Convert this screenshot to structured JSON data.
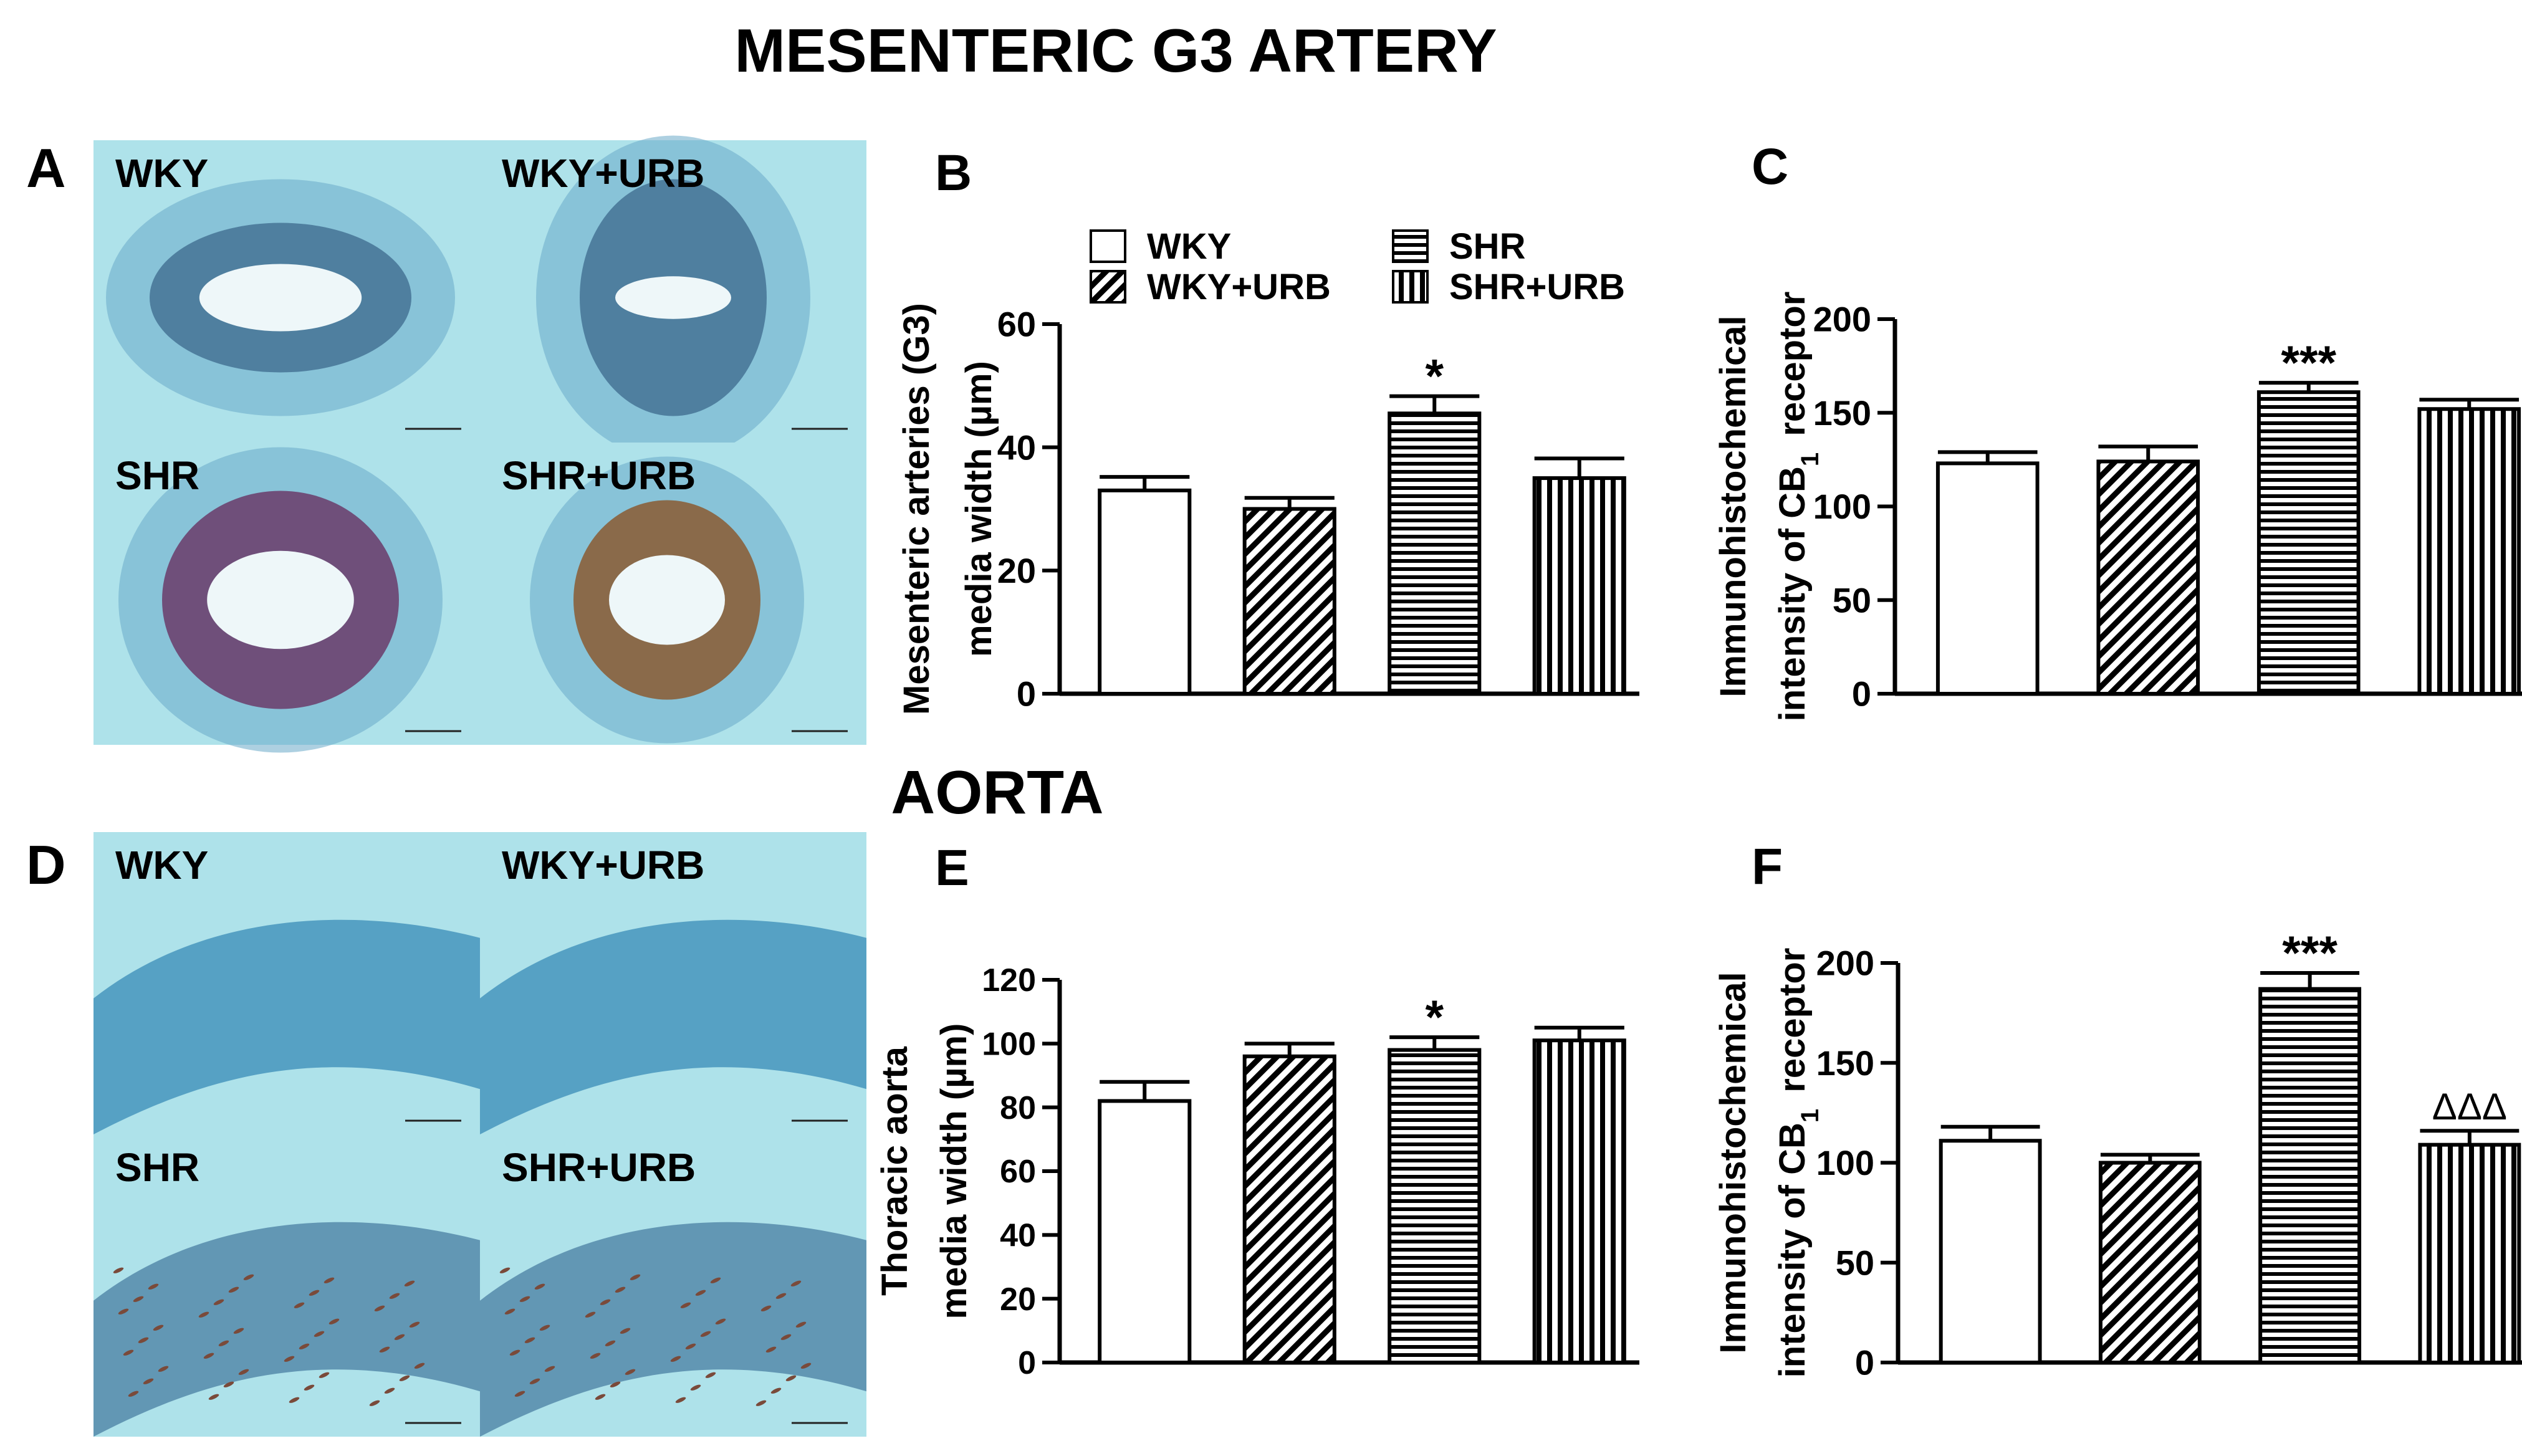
{
  "figure": {
    "section_top": "MESENTERIC  G3 ARTERY",
    "section_bottom": "AORTA"
  },
  "colors": {
    "ink": "#000000",
    "micrograph_bg": "#aee2ea",
    "tissue_blue": "#3c86b8",
    "tissue_brown": "#7a4a3a"
  },
  "micrographs": [
    {
      "panel": "A",
      "labels": [
        "WKY",
        "WKY+URB",
        "SHR",
        "SHR+URB"
      ]
    },
    {
      "panel": "D",
      "labels": [
        "WKY",
        "WKY+URB",
        "SHR",
        "SHR+URB"
      ]
    }
  ],
  "legend": {
    "items": [
      {
        "label": "WKY",
        "pattern": "open"
      },
      {
        "label": "SHR",
        "pattern": "horizontal"
      },
      {
        "label": "WKY+URB",
        "pattern": "diagonal"
      },
      {
        "label": "SHR+URB",
        "pattern": "vertical"
      }
    ]
  },
  "chart_data": [
    {
      "panel": "B",
      "type": "bar",
      "categories": [
        "WKY",
        "WKY+URB",
        "SHR",
        "SHR+URB"
      ],
      "patterns": [
        "open",
        "diagonal",
        "horizontal",
        "vertical"
      ],
      "values": [
        33,
        30,
        45.5,
        35
      ],
      "errors": [
        2.2,
        1.8,
        2.8,
        3.2
      ],
      "annotations": [
        "",
        "",
        "*",
        ""
      ],
      "ylabel_lines": [
        "Mesenteric arteries (G3)",
        "media width (µm)"
      ],
      "ylim": [
        0,
        60
      ],
      "yticks": [
        0,
        20,
        40,
        60
      ]
    },
    {
      "panel": "C",
      "type": "bar",
      "categories": [
        "WKY",
        "WKY+URB",
        "SHR",
        "SHR+URB"
      ],
      "patterns": [
        "open",
        "diagonal",
        "horizontal",
        "vertical"
      ],
      "values": [
        123,
        124,
        161,
        152
      ],
      "errors": [
        6,
        8,
        5,
        5
      ],
      "annotations": [
        "",
        "",
        "***",
        ""
      ],
      "ylabel_lines": [
        "Immunohistochemical",
        "intensity of CB1 receptor"
      ],
      "ylim": [
        0,
        200
      ],
      "yticks": [
        0,
        50,
        100,
        150,
        200
      ]
    },
    {
      "panel": "E",
      "type": "bar",
      "categories": [
        "WKY",
        "WKY+URB",
        "SHR",
        "SHR+URB"
      ],
      "patterns": [
        "open",
        "diagonal",
        "horizontal",
        "vertical"
      ],
      "values": [
        82,
        96,
        98,
        101
      ],
      "errors": [
        6,
        4,
        4,
        4
      ],
      "annotations": [
        "",
        "",
        "*",
        ""
      ],
      "ylabel_lines": [
        "Thoracic aorta",
        "media width (µm)"
      ],
      "ylim": [
        0,
        120
      ],
      "yticks": [
        0,
        20,
        40,
        60,
        80,
        100,
        120
      ]
    },
    {
      "panel": "F",
      "type": "bar",
      "categories": [
        "WKY",
        "WKY+URB",
        "SHR",
        "SHR+URB"
      ],
      "patterns": [
        "open",
        "diagonal",
        "horizontal",
        "vertical"
      ],
      "values": [
        111,
        100,
        187,
        109
      ],
      "errors": [
        7,
        4,
        8,
        7
      ],
      "annotations": [
        "",
        "",
        "***",
        "ΔΔΔ"
      ],
      "ylabel_lines": [
        "Immunohistochemical",
        "intensity of CB1 receptor"
      ],
      "ylim": [
        0,
        200
      ],
      "yticks": [
        0,
        50,
        100,
        150,
        200
      ]
    }
  ]
}
